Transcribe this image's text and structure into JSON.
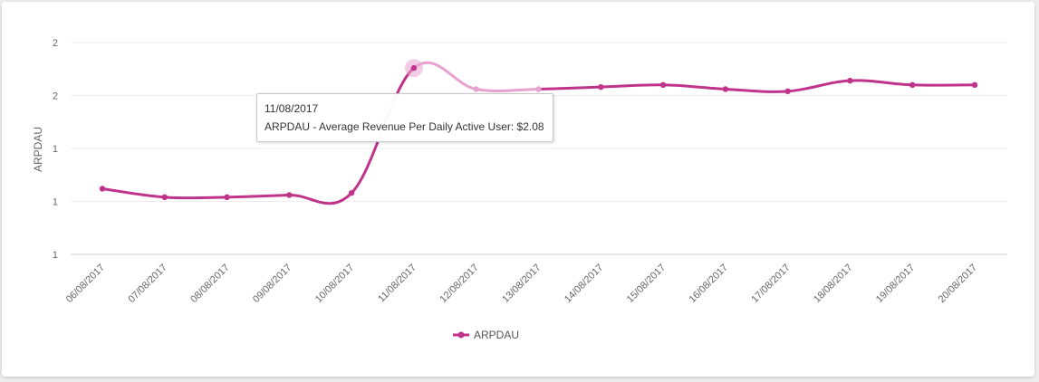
{
  "chart_data": {
    "type": "line",
    "x": [
      "06/08/2017",
      "07/08/2017",
      "08/08/2017",
      "09/08/2017",
      "10/08/2017",
      "11/08/2017",
      "12/08/2017",
      "13/08/2017",
      "14/08/2017",
      "15/08/2017",
      "16/08/2017",
      "17/08/2017",
      "18/08/2017",
      "19/08/2017",
      "20/08/2017"
    ],
    "series": [
      {
        "name": "ARPDAU",
        "values": [
          1.51,
          1.47,
          1.47,
          1.48,
          1.49,
          2.08,
          1.98,
          1.98,
          1.99,
          2.0,
          1.98,
          1.97,
          2.02,
          2.0,
          2.0
        ]
      }
    ],
    "ylabel": "ARPDAU",
    "ytick_labels": [
      "1",
      "1",
      "1",
      "2",
      "2"
    ],
    "ylim": [
      1.2,
      2.2
    ],
    "grid": true,
    "legend_position": "bottom-center",
    "color": "#c0338a",
    "highlight_color": "#e8a2cf",
    "highlight_index": 5
  },
  "tooltip": {
    "date": "11/08/2017",
    "label": "ARPDAU - Average Revenue Per Daily Active User: $2.08"
  },
  "legend": {
    "label": "ARPDAU"
  }
}
